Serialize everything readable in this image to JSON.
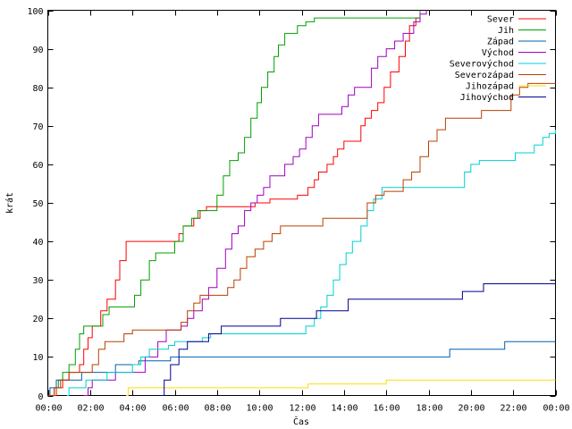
{
  "chart_data": {
    "type": "line",
    "title": "",
    "xlabel": "Čas",
    "ylabel": "krát",
    "xlim": [
      0,
      24
    ],
    "ylim": [
      0,
      100
    ],
    "x_ticks": [
      {
        "v": 0,
        "label": "00:00"
      },
      {
        "v": 2,
        "label": "02:00"
      },
      {
        "v": 4,
        "label": "04:00"
      },
      {
        "v": 6,
        "label": "06:00"
      },
      {
        "v": 8,
        "label": "08:00"
      },
      {
        "v": 10,
        "label": "10:00"
      },
      {
        "v": 12,
        "label": "12:00"
      },
      {
        "v": 14,
        "label": "14:00"
      },
      {
        "v": 16,
        "label": "16:00"
      },
      {
        "v": 18,
        "label": "18:00"
      },
      {
        "v": 20,
        "label": "20:00"
      },
      {
        "v": 22,
        "label": "22:00"
      },
      {
        "v": 24,
        "label": "00:00"
      }
    ],
    "y_ticks": [
      {
        "v": 0,
        "label": "0"
      },
      {
        "v": 10,
        "label": "10"
      },
      {
        "v": 20,
        "label": "20"
      },
      {
        "v": 30,
        "label": "30"
      },
      {
        "v": 40,
        "label": "40"
      },
      {
        "v": 50,
        "label": "50"
      },
      {
        "v": 60,
        "label": "60"
      },
      {
        "v": 70,
        "label": "70"
      },
      {
        "v": 80,
        "label": "80"
      },
      {
        "v": 90,
        "label": "90"
      },
      {
        "v": 100,
        "label": "100"
      }
    ],
    "grid": false,
    "legend": "top-right",
    "series": [
      {
        "name": "Sever",
        "color": "#ff0000",
        "points": [
          [
            0.3,
            0
          ],
          [
            0.4,
            2
          ],
          [
            0.7,
            4
          ],
          [
            1.0,
            6
          ],
          [
            1.5,
            8
          ],
          [
            1.7,
            12
          ],
          [
            1.9,
            15
          ],
          [
            2.1,
            18
          ],
          [
            2.5,
            22
          ],
          [
            2.8,
            25
          ],
          [
            3.2,
            30
          ],
          [
            3.4,
            35
          ],
          [
            3.7,
            40
          ],
          [
            5.9,
            40
          ],
          [
            6.2,
            42
          ],
          [
            6.4,
            44
          ],
          [
            6.9,
            46
          ],
          [
            7.2,
            48
          ],
          [
            7.5,
            49
          ],
          [
            9.5,
            49
          ],
          [
            9.8,
            50
          ],
          [
            10.5,
            51
          ],
          [
            11.6,
            51
          ],
          [
            11.8,
            52
          ],
          [
            12.3,
            54
          ],
          [
            12.6,
            56
          ],
          [
            12.8,
            58
          ],
          [
            13.0,
            58
          ],
          [
            13.2,
            60
          ],
          [
            13.5,
            62
          ],
          [
            13.7,
            64
          ],
          [
            14.0,
            66
          ],
          [
            14.5,
            66
          ],
          [
            14.8,
            70
          ],
          [
            15.0,
            72
          ],
          [
            15.3,
            74
          ],
          [
            15.6,
            76
          ],
          [
            15.9,
            80
          ],
          [
            16.2,
            84
          ],
          [
            16.6,
            88
          ],
          [
            16.9,
            92
          ],
          [
            17.1,
            96
          ],
          [
            17.4,
            98
          ],
          [
            17.6,
            100
          ]
        ]
      },
      {
        "name": "Jih",
        "color": "#00a000",
        "points": [
          [
            0.1,
            0
          ],
          [
            0.3,
            2
          ],
          [
            0.5,
            4
          ],
          [
            0.7,
            6
          ],
          [
            1.0,
            8
          ],
          [
            1.3,
            12
          ],
          [
            1.5,
            16
          ],
          [
            1.7,
            18
          ],
          [
            2.3,
            18
          ],
          [
            2.6,
            21
          ],
          [
            2.9,
            23
          ],
          [
            3.8,
            23
          ],
          [
            4.1,
            26
          ],
          [
            4.4,
            30
          ],
          [
            4.8,
            35
          ],
          [
            5.1,
            37
          ],
          [
            5.8,
            37
          ],
          [
            6.0,
            40
          ],
          [
            6.4,
            44
          ],
          [
            6.8,
            46
          ],
          [
            7.1,
            48
          ],
          [
            7.6,
            48
          ],
          [
            8.0,
            52
          ],
          [
            8.3,
            57
          ],
          [
            8.6,
            61
          ],
          [
            9.0,
            63
          ],
          [
            9.3,
            67
          ],
          [
            9.6,
            72
          ],
          [
            9.9,
            76
          ],
          [
            10.1,
            80
          ],
          [
            10.4,
            84
          ],
          [
            10.7,
            88
          ],
          [
            10.9,
            91
          ],
          [
            11.2,
            94
          ],
          [
            11.6,
            94
          ],
          [
            11.8,
            96
          ],
          [
            12.2,
            97
          ],
          [
            12.6,
            98
          ],
          [
            17.4,
            98
          ],
          [
            17.6,
            100
          ]
        ]
      },
      {
        "name": "Západ",
        "color": "#0060b0",
        "points": [
          [
            0.0,
            0
          ],
          [
            0.1,
            2
          ],
          [
            0.4,
            4
          ],
          [
            1.3,
            4
          ],
          [
            1.6,
            6
          ],
          [
            3.0,
            6
          ],
          [
            3.2,
            8
          ],
          [
            4.1,
            8
          ],
          [
            4.3,
            9
          ],
          [
            5.4,
            9
          ],
          [
            5.8,
            10
          ],
          [
            6.4,
            10
          ],
          [
            6.7,
            10
          ],
          [
            18.8,
            10
          ],
          [
            19.0,
            12
          ],
          [
            21.4,
            12
          ],
          [
            21.6,
            14
          ],
          [
            24.0,
            14
          ]
        ]
      },
      {
        "name": "Východ",
        "color": "#a000c0",
        "points": [
          [
            1.7,
            0
          ],
          [
            1.9,
            2
          ],
          [
            2.1,
            4
          ],
          [
            2.9,
            4
          ],
          [
            3.2,
            6
          ],
          [
            4.3,
            6
          ],
          [
            4.6,
            10
          ],
          [
            5.2,
            14
          ],
          [
            5.6,
            17
          ],
          [
            6.0,
            17
          ],
          [
            6.3,
            18
          ],
          [
            6.6,
            20
          ],
          [
            6.9,
            22
          ],
          [
            7.3,
            25
          ],
          [
            7.6,
            28
          ],
          [
            8.0,
            33
          ],
          [
            8.4,
            38
          ],
          [
            8.7,
            42
          ],
          [
            9.0,
            44
          ],
          [
            9.3,
            48
          ],
          [
            9.6,
            50
          ],
          [
            9.9,
            52
          ],
          [
            10.2,
            54
          ],
          [
            10.5,
            57
          ],
          [
            10.8,
            57
          ],
          [
            11.2,
            60
          ],
          [
            11.6,
            62
          ],
          [
            11.9,
            64
          ],
          [
            12.2,
            67
          ],
          [
            12.5,
            70
          ],
          [
            12.8,
            73
          ],
          [
            13.6,
            73
          ],
          [
            13.9,
            75
          ],
          [
            14.2,
            78
          ],
          [
            14.5,
            80
          ],
          [
            15.0,
            80
          ],
          [
            15.3,
            85
          ],
          [
            15.6,
            88
          ],
          [
            16.0,
            90
          ],
          [
            16.4,
            92
          ],
          [
            16.8,
            94
          ],
          [
            17.3,
            97
          ],
          [
            17.6,
            99
          ],
          [
            17.9,
            100
          ]
        ]
      },
      {
        "name": "Severovýchod",
        "color": "#00d0d0",
        "points": [
          [
            0.9,
            0
          ],
          [
            1.0,
            2
          ],
          [
            1.5,
            2
          ],
          [
            1.8,
            4
          ],
          [
            2.5,
            4
          ],
          [
            2.8,
            6
          ],
          [
            3.7,
            6
          ],
          [
            4.0,
            8
          ],
          [
            4.4,
            10
          ],
          [
            4.8,
            12
          ],
          [
            5.4,
            12
          ],
          [
            5.7,
            13
          ],
          [
            6.0,
            14
          ],
          [
            7.0,
            14
          ],
          [
            7.3,
            15
          ],
          [
            7.7,
            16
          ],
          [
            11.9,
            16
          ],
          [
            12.2,
            18
          ],
          [
            12.6,
            20
          ],
          [
            12.9,
            23
          ],
          [
            13.2,
            26
          ],
          [
            13.5,
            30
          ],
          [
            13.8,
            34
          ],
          [
            14.1,
            37
          ],
          [
            14.4,
            40
          ],
          [
            14.8,
            44
          ],
          [
            15.1,
            48
          ],
          [
            15.4,
            51
          ],
          [
            15.8,
            54
          ],
          [
            19.4,
            54
          ],
          [
            19.7,
            58
          ],
          [
            20.0,
            60
          ],
          [
            20.4,
            61
          ],
          [
            21.8,
            61
          ],
          [
            22.1,
            63
          ],
          [
            22.7,
            63
          ],
          [
            23.0,
            65
          ],
          [
            23.4,
            67
          ],
          [
            23.7,
            68
          ],
          [
            24.0,
            69
          ]
        ]
      },
      {
        "name": "Severozápad",
        "color": "#b84000",
        "points": [
          [
            0.0,
            0
          ],
          [
            0.3,
            2
          ],
          [
            0.6,
            4
          ],
          [
            1.0,
            6
          ],
          [
            1.7,
            6
          ],
          [
            2.1,
            8
          ],
          [
            2.4,
            12
          ],
          [
            2.7,
            14
          ],
          [
            3.2,
            14
          ],
          [
            3.6,
            16
          ],
          [
            4.0,
            17
          ],
          [
            6.0,
            17
          ],
          [
            6.3,
            19
          ],
          [
            6.6,
            22
          ],
          [
            6.9,
            24
          ],
          [
            7.2,
            26
          ],
          [
            8.2,
            26
          ],
          [
            8.5,
            28
          ],
          [
            8.8,
            30
          ],
          [
            9.1,
            33
          ],
          [
            9.4,
            36
          ],
          [
            9.8,
            38
          ],
          [
            10.2,
            40
          ],
          [
            10.6,
            42
          ],
          [
            11.0,
            44
          ],
          [
            12.8,
            44
          ],
          [
            13.0,
            46
          ],
          [
            14.9,
            46
          ],
          [
            15.1,
            50
          ],
          [
            15.5,
            52
          ],
          [
            15.9,
            53
          ],
          [
            16.4,
            53
          ],
          [
            16.8,
            56
          ],
          [
            17.2,
            58
          ],
          [
            17.6,
            62
          ],
          [
            18.0,
            66
          ],
          [
            18.4,
            69
          ],
          [
            18.8,
            72
          ],
          [
            20.2,
            72
          ],
          [
            20.5,
            74
          ],
          [
            21.6,
            74
          ],
          [
            21.9,
            78
          ],
          [
            22.3,
            80
          ],
          [
            22.7,
            81
          ],
          [
            24.0,
            81
          ]
        ]
      },
      {
        "name": "Jihozápad",
        "color": "#ffdd00",
        "points": [
          [
            3.7,
            0
          ],
          [
            3.8,
            2
          ],
          [
            12.1,
            2
          ],
          [
            12.3,
            3
          ],
          [
            15.8,
            3
          ],
          [
            16.0,
            4
          ],
          [
            24.0,
            4
          ]
        ]
      },
      {
        "name": "Jihovýchod",
        "color": "#000090",
        "points": [
          [
            5.3,
            0
          ],
          [
            5.5,
            4
          ],
          [
            5.8,
            8
          ],
          [
            6.2,
            12
          ],
          [
            6.6,
            14
          ],
          [
            7.4,
            14
          ],
          [
            7.6,
            16
          ],
          [
            8.2,
            18
          ],
          [
            10.8,
            18
          ],
          [
            11.0,
            20
          ],
          [
            12.4,
            20
          ],
          [
            12.7,
            22
          ],
          [
            14.0,
            22
          ],
          [
            14.2,
            25
          ],
          [
            19.4,
            25
          ],
          [
            19.6,
            27
          ],
          [
            20.4,
            27
          ],
          [
            20.6,
            29
          ],
          [
            24.0,
            29
          ]
        ]
      }
    ]
  }
}
